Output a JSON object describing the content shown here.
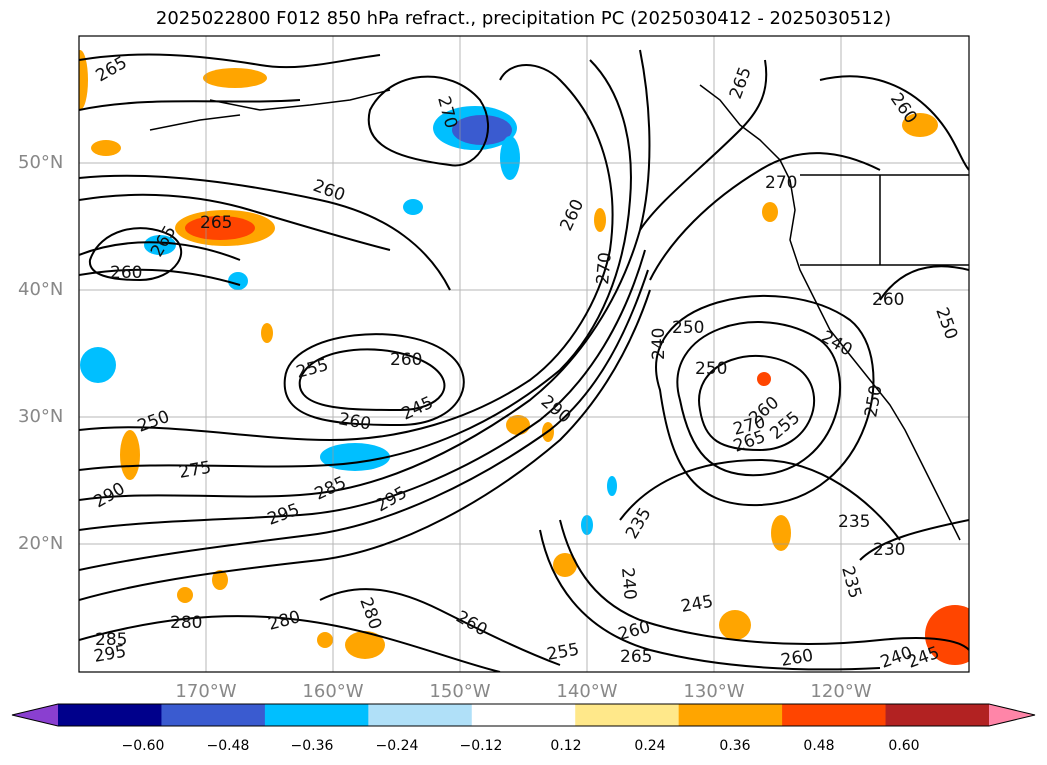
{
  "title": "2025022800 F012 850 hPa refract., precipitation PC (2025030412 - 2025030512)",
  "lat_labels": [
    "50°N",
    "40°N",
    "30°N",
    "20°N"
  ],
  "lon_labels": [
    "170°W",
    "160°W",
    "150°W",
    "140°W",
    "130°W",
    "120°W"
  ],
  "colorbar": {
    "ticks": [
      "−0.60",
      "−0.48",
      "−0.36",
      "−0.24",
      "−0.12",
      "0.12",
      "0.24",
      "0.36",
      "0.48",
      "0.60"
    ],
    "colors": [
      "#8a3fd0",
      "#00008b",
      "#3a5bd0",
      "#00bfff",
      "#b0e0f8",
      "#ffffff",
      "#ffe88a",
      "#ffa500",
      "#ff4500",
      "#b22222",
      "#ff85a8"
    ]
  },
  "contour_labels": [
    "265",
    "270",
    "265",
    "260",
    "265",
    "260",
    "265",
    "260",
    "260",
    "260",
    "270",
    "240",
    "250",
    "250",
    "255",
    "260",
    "245",
    "250",
    "275",
    "290",
    "295",
    "285",
    "295",
    "290",
    "270",
    "260",
    "250",
    "240",
    "250",
    "265",
    "260",
    "255",
    "270",
    "240",
    "235",
    "235",
    "230",
    "235",
    "240",
    "245",
    "260",
    "265",
    "260",
    "245",
    "280",
    "285",
    "295",
    "280",
    "255",
    "280",
    "260"
  ]
}
